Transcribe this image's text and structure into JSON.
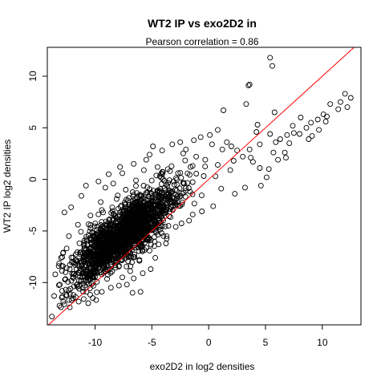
{
  "chart_data": {
    "type": "scatter",
    "title": "WT2 IP vs exo2D2 in",
    "subtitle": "Pearson correlation =  0.86",
    "xlabel": "exo2D2 in log2 densities",
    "ylabel": "WT2 IP log2 densities",
    "xlim": [
      -14.2,
      13.4
    ],
    "ylim": [
      -14.1,
      12.8
    ],
    "x_ticks": [
      -10,
      -5,
      0,
      5,
      10
    ],
    "y_ticks": [
      -10,
      -5,
      0,
      5,
      10
    ],
    "x_tick_labels": [
      "-10",
      "-5",
      "0",
      "5",
      "10"
    ],
    "y_tick_labels": [
      "-10",
      "-5",
      "0",
      "5",
      "10"
    ],
    "grid": false,
    "legend": "none",
    "marker": "open-circle",
    "point_color": "#000000",
    "reference_line": {
      "slope": 1,
      "intercept": 0,
      "color": "#ff0000"
    },
    "outlier_points": [
      [
        -13.8,
        -13.3
      ],
      [
        -13.0,
        -12.4
      ],
      [
        -12.7,
        -12.1
      ],
      [
        -12.3,
        -11.7
      ],
      [
        -11.9,
        -11.2
      ],
      [
        -11.4,
        -10.6
      ],
      [
        -10.9,
        -10.3
      ],
      [
        -13.5,
        -9.2
      ],
      [
        -13.2,
        -8.4
      ],
      [
        -13.0,
        -7.6
      ],
      [
        -12.8,
        -7.1
      ],
      [
        -12.5,
        -6.7
      ],
      [
        -12.9,
        -10.8
      ],
      [
        -12.2,
        -11.1
      ],
      [
        -11.7,
        -11.4
      ],
      [
        -11.0,
        -11.6
      ],
      [
        -10.2,
        -11.5
      ],
      [
        -9.4,
        -10.9
      ],
      [
        -8.6,
        -10.5
      ],
      [
        -7.9,
        -10.3
      ],
      [
        -7.2,
        -10.2
      ],
      [
        -6.0,
        -10.9
      ],
      [
        -6.6,
        -9.6
      ],
      [
        -5.8,
        -9.1
      ],
      [
        -12.7,
        -3.2
      ],
      [
        -12.1,
        -2.7
      ],
      [
        -11.2,
        -1.6
      ],
      [
        -10.8,
        -0.6
      ],
      [
        -9.7,
        -0.2
      ],
      [
        -9.1,
        -0.8
      ],
      [
        -8.4,
        -0.4
      ],
      [
        -8.8,
        0.5
      ],
      [
        -7.6,
        0.6
      ],
      [
        -7.8,
        1.2
      ],
      [
        -6.6,
        1.5
      ],
      [
        -5.5,
        1.9
      ],
      [
        -5.2,
        2.4
      ],
      [
        -4.9,
        3.2
      ],
      [
        -4.1,
        2.8
      ],
      [
        -3.2,
        3.4
      ],
      [
        -2.5,
        3.6
      ],
      [
        -2.0,
        2.9
      ],
      [
        -1.3,
        3.8
      ],
      [
        -0.7,
        4.1
      ],
      [
        0.1,
        4.3
      ],
      [
        0.8,
        4.8
      ],
      [
        0.3,
        3.4
      ],
      [
        1.2,
        2.9
      ],
      [
        1.6,
        3.6
      ],
      [
        2.0,
        3.2
      ],
      [
        2.5,
        2.8
      ],
      [
        3.0,
        2.2
      ],
      [
        2.2,
        1.8
      ],
      [
        0.8,
        1.4
      ],
      [
        -0.3,
        1.9
      ],
      [
        -1.1,
        2.2
      ],
      [
        -1.6,
        1.2
      ],
      [
        1.3,
        6.7
      ],
      [
        3.5,
        9.1
      ],
      [
        3.6,
        9.2
      ],
      [
        3.3,
        7.3
      ],
      [
        5.4,
        11.8
      ],
      [
        5.6,
        11.0
      ],
      [
        5.8,
        6.5
      ],
      [
        4.3,
        5.3
      ],
      [
        4.2,
        4.6
      ],
      [
        5.4,
        4.4
      ],
      [
        4.5,
        3.4
      ],
      [
        3.6,
        2.9
      ],
      [
        3.7,
        2.1
      ],
      [
        4.5,
        1.1
      ],
      [
        3.9,
        1.7
      ],
      [
        6.1,
        1.9
      ],
      [
        5.7,
        2.6
      ],
      [
        5.9,
        3.6
      ],
      [
        6.3,
        3.9
      ],
      [
        6.9,
        4.3
      ],
      [
        7.5,
        4.5
      ],
      [
        7.1,
        3.5
      ],
      [
        6.7,
        2.6
      ],
      [
        7.4,
        5.2
      ],
      [
        8.1,
        6.0
      ],
      [
        8.0,
        4.4
      ],
      [
        8.6,
        5.0
      ],
      [
        9.0,
        5.5
      ],
      [
        9.6,
        5.8
      ],
      [
        8.8,
        3.9
      ],
      [
        9.1,
        4.2
      ],
      [
        9.7,
        4.8
      ],
      [
        10.3,
        5.6
      ],
      [
        10.1,
        6.3
      ],
      [
        10.4,
        6.1
      ],
      [
        10.7,
        7.3
      ],
      [
        11.4,
        6.8
      ],
      [
        11.6,
        7.5
      ],
      [
        12.0,
        8.3
      ],
      [
        12.2,
        7.0
      ],
      [
        12.5,
        7.9
      ],
      [
        6.8,
        2.1
      ],
      [
        5.3,
        1.0
      ],
      [
        4.6,
        -0.6
      ],
      [
        5.1,
        0.2
      ],
      [
        3.2,
        -0.8
      ],
      [
        2.3,
        -1.4
      ],
      [
        1.1,
        -0.9
      ],
      [
        0.4,
        -2.6
      ],
      [
        -0.6,
        -3.1
      ],
      [
        -1.4,
        -3.4
      ],
      [
        -2.9,
        -4.6
      ],
      [
        -3.7,
        -5.5
      ],
      [
        -4.4,
        -6.3
      ],
      [
        -5.2,
        -6.9
      ],
      [
        -6.1,
        -7.8
      ],
      [
        -6.9,
        -8.9
      ],
      [
        -7.6,
        -9.5
      ],
      [
        -5.1,
        -8.7
      ],
      [
        -4.7,
        -7.6
      ],
      [
        -6.7,
        -11.0
      ],
      [
        -10.6,
        -12.0
      ],
      [
        -9.9,
        -11.7
      ],
      [
        -13.6,
        -11.3
      ],
      [
        -13.1,
        -10.2
      ],
      [
        -12.6,
        -9.0
      ],
      [
        -11.8,
        -8.1
      ],
      [
        -12.3,
        -5.5
      ],
      [
        -11.5,
        -4.4
      ],
      [
        -10.4,
        -3.5
      ],
      [
        -9.5,
        -2.2
      ],
      [
        -8.1,
        -1.9
      ],
      [
        -7.3,
        -1.0
      ],
      [
        -6.4,
        -0.1
      ],
      [
        -5.7,
        0.9
      ],
      [
        -4.5,
        1.2
      ],
      [
        -3.6,
        1.0
      ],
      [
        -2.7,
        0.6
      ],
      [
        -4.3,
        0.3
      ],
      [
        -3.1,
        -0.2
      ],
      [
        -2.2,
        -1.3
      ],
      [
        0.6,
        0.3
      ],
      [
        1.9,
        0.9
      ]
    ],
    "dense_core_generator": {
      "count": 1800,
      "x_mean": -7.5,
      "x_sd": 2.2,
      "residual_sd": 1.35,
      "fit_slope": 0.82,
      "fit_intercept": 0.8
    }
  }
}
